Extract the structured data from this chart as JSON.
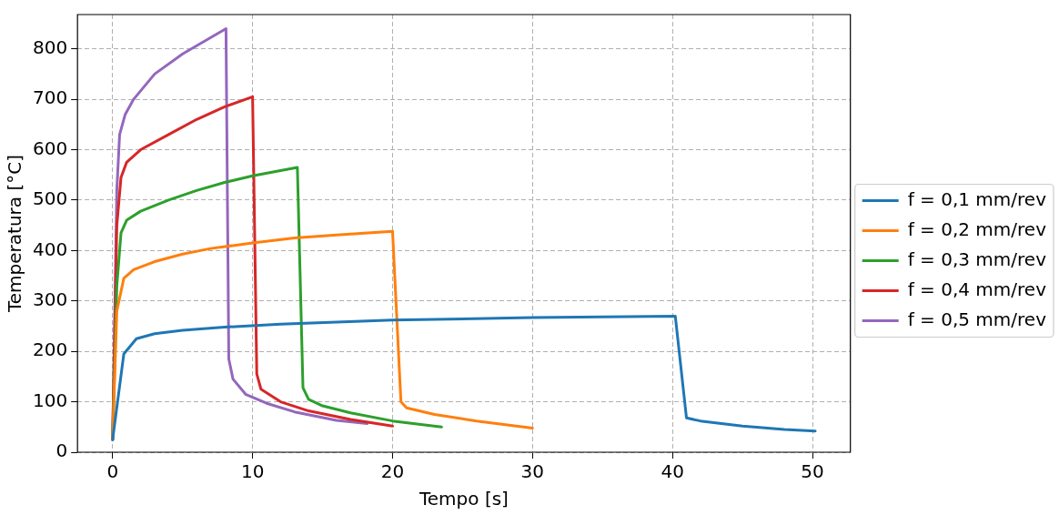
{
  "chart_data": {
    "type": "line",
    "xlabel": "Tempo [s]",
    "ylabel": "Temperatura [°C]",
    "xlim": [
      -2.51,
      52.71
    ],
    "xticks": [
      0,
      10,
      20,
      30,
      40,
      50
    ],
    "ylim": [
      0,
      868
    ],
    "yticks": [
      0,
      100,
      200,
      300,
      400,
      500,
      600,
      700,
      800
    ],
    "grid": true,
    "legend": "right",
    "marker": "none",
    "line_style": "solid",
    "series": [
      {
        "name": "f = 0,1 mm/rev",
        "color": "#1f77b4",
        "x": [
          0,
          0.8,
          1.7,
          3,
          5,
          8,
          12,
          20,
          30,
          40.2,
          41,
          42,
          45,
          48,
          50.2
        ],
        "values": [
          25,
          195,
          225,
          235,
          242,
          248,
          254,
          262,
          267,
          270,
          68,
          62,
          52,
          45,
          42
        ]
      },
      {
        "name": "f = 0,2 mm/rev",
        "color": "#ff7f0e",
        "x": [
          0,
          0.3,
          0.8,
          1.5,
          3,
          5,
          7,
          10,
          13,
          16,
          20,
          20.6,
          21,
          23,
          26,
          30
        ],
        "values": [
          25,
          280,
          345,
          362,
          378,
          393,
          404,
          415,
          425,
          431,
          438,
          100,
          88,
          75,
          62,
          48
        ]
      },
      {
        "name": "f = 0,3 mm/rev",
        "color": "#2ca02c",
        "x": [
          0,
          0.3,
          0.6,
          1,
          2,
          4,
          6,
          8,
          10,
          13.2,
          13.6,
          14,
          15,
          17,
          20,
          23.5
        ],
        "values": [
          25,
          330,
          435,
          460,
          478,
          500,
          519,
          535,
          548,
          565,
          128,
          105,
          92,
          78,
          62,
          50
        ]
      },
      {
        "name": "f = 0,4 mm/rev",
        "color": "#d62728",
        "x": [
          0,
          0.3,
          0.6,
          1,
          2,
          4,
          6,
          8,
          10,
          10.3,
          10.6,
          12,
          14,
          17,
          20
        ],
        "values": [
          25,
          450,
          545,
          575,
          600,
          630,
          660,
          685,
          705,
          155,
          125,
          100,
          82,
          65,
          52
        ]
      },
      {
        "name": "f = 0,5 mm/rev",
        "color": "#9467bd",
        "x": [
          0,
          0.3,
          0.5,
          0.9,
          1.5,
          3,
          5,
          8.1,
          8.3,
          8.6,
          9.5,
          11,
          13,
          16,
          18.2
        ],
        "values": [
          25,
          520,
          630,
          670,
          700,
          750,
          790,
          840,
          185,
          145,
          115,
          97,
          80,
          63,
          57
        ]
      }
    ]
  }
}
